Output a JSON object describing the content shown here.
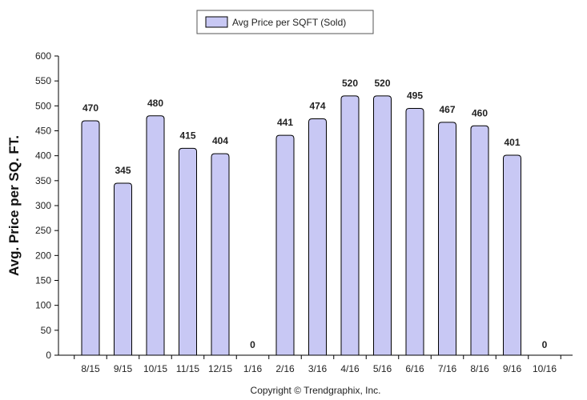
{
  "chart_data": {
    "type": "bar",
    "categories": [
      "8/15",
      "9/15",
      "10/15",
      "11/15",
      "12/15",
      "1/16",
      "2/16",
      "3/16",
      "4/16",
      "5/16",
      "6/16",
      "7/16",
      "8/16",
      "9/16",
      "10/16"
    ],
    "series": [
      {
        "name": "Avg Price per SQFT (Sold)",
        "values": [
          470,
          345,
          480,
          415,
          404,
          0,
          441,
          474,
          520,
          520,
          495,
          467,
          460,
          401,
          0
        ]
      }
    ],
    "data_labels": [
      "470",
      "345",
      "480",
      "415",
      "404",
      "0",
      "441",
      "474",
      "520",
      "520",
      "495",
      "467",
      "460",
      "401",
      "0"
    ],
    "y_ticks": [
      "0",
      "50",
      "100",
      "150",
      "200",
      "250",
      "300",
      "350",
      "400",
      "450",
      "500",
      "550",
      "600"
    ],
    "ylim": [
      0,
      600
    ],
    "ylabel": "Avg. Price per SQ. FT.",
    "xlabel": "",
    "legend_position": "top-center",
    "grid": false,
    "colors": {
      "bar_fill": "#c8c8f4",
      "bar_stroke": "#000000"
    }
  },
  "footer": {
    "copyright": "Copyright © Trendgraphix, Inc."
  }
}
